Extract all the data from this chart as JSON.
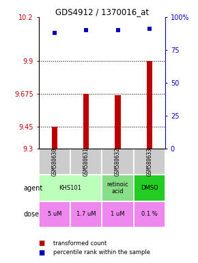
{
  "title": "GDS4912 / 1370016_at",
  "samples": [
    "GSM580630",
    "GSM580631",
    "GSM580632",
    "GSM580633"
  ],
  "red_values": [
    9.45,
    9.675,
    9.665,
    9.9
  ],
  "blue_values": [
    88,
    90,
    90,
    91
  ],
  "ylim_left": [
    9.3,
    10.2
  ],
  "ylim_right": [
    0,
    100
  ],
  "yticks_left": [
    9.3,
    9.45,
    9.675,
    9.9,
    10.2
  ],
  "yticks_right": [
    0,
    25,
    50,
    75,
    100
  ],
  "ytick_labels_left": [
    "9.3",
    "9.45",
    "9.675",
    "9.9",
    "10.2"
  ],
  "ytick_labels_right": [
    "0",
    "25",
    "50",
    "75",
    "100%"
  ],
  "hlines": [
    9.45,
    9.675,
    9.9
  ],
  "dose_labels": [
    "5 uM",
    "1.7 uM",
    "1 uM",
    "0.1 %"
  ],
  "dose_color": "#ee88ee",
  "sample_bg": "#cccccc",
  "legend_red": "transformed count",
  "legend_blue": "percentile rank within the sample",
  "red_color": "#bb0000",
  "blue_color": "#0000bb",
  "bar_width": 0.18,
  "agent_groups": [
    {
      "c0": 0,
      "c1": 2,
      "label": "KHS101",
      "color": "#bbffbb"
    },
    {
      "c0": 2,
      "c1": 3,
      "label": "retinoic\nacid",
      "color": "#88dd88"
    },
    {
      "c0": 3,
      "c1": 4,
      "label": "DMSO",
      "color": "#22cc22"
    }
  ]
}
